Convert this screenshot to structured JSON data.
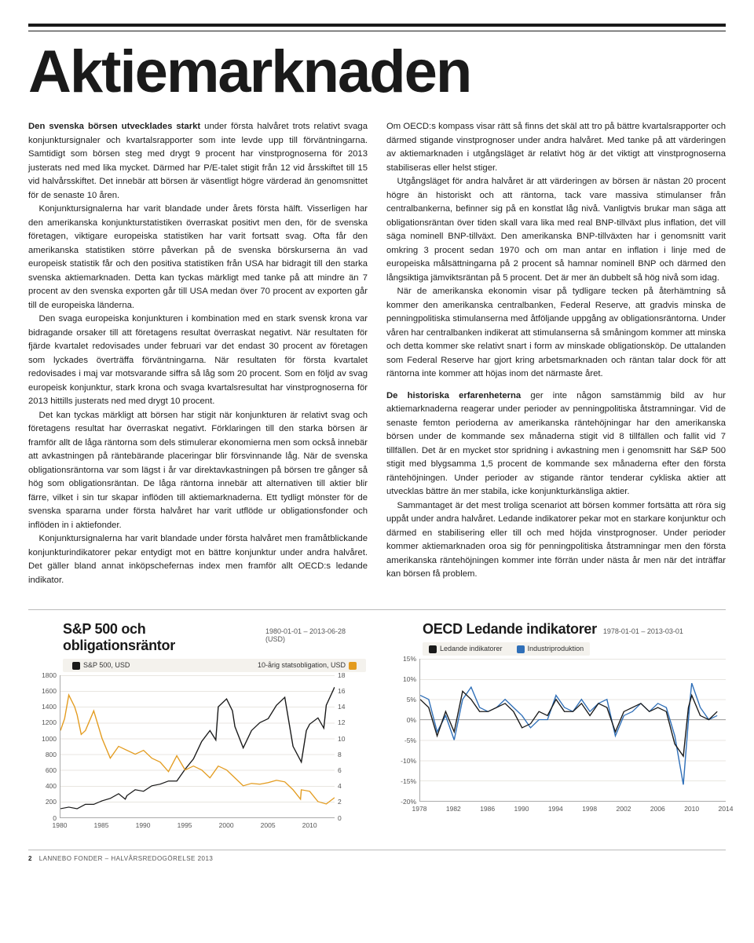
{
  "title": "Aktiemarknaden",
  "left_column": {
    "p1_lead": "Den svenska börsen utvecklades starkt",
    "p1": " under första halvåret trots relativt svaga konjunktursignaler och kvartalsrapporter som inte levde upp till förväntningarna. Samtidigt som börsen steg med drygt 9 procent har vinstprognoserna för 2013 justerats ned med lika mycket. Därmed har P/E-talet stigit från 12 vid årsskiftet till 15 vid halvårsskiftet. Det innebär att börsen är väsentligt högre värderad än genomsnittet för de senaste 10 åren.",
    "p2": "Konjunktursignalerna har varit blandade under årets första hälft. Visserligen har den amerikanska konjunkturstatistiken överraskat positivt men den, för de svenska företagen, viktigare europeiska statistiken har varit fortsatt svag. Ofta får den amerikanska statistiken större påverkan på de svenska börskurserna än vad europeisk statistik får och den positiva statistiken från USA har bidragit till den starka svenska aktiemarknaden. Detta kan tyckas märkligt med tanke på att mindre än 7 procent av den svenska exporten går till USA medan över 70 procent av exporten går till de europeiska länderna.",
    "p3": "Den svaga europeiska konjunkturen i kombination med en stark svensk krona var bidragande orsaker till att företagens resultat överraskat negativt. När resultaten för fjärde kvartalet redovisades under februari var det endast 30 procent av företagen som lyckades överträffa förväntningarna. När resultaten för första kvartalet redovisades i maj var motsvarande siffra så låg som 20 procent. Som en följd av svag europeisk konjunktur, stark krona och svaga kvartalsresultat har vinstprognoserna för 2013 hittills justerats ned med drygt 10 procent.",
    "p4": "Det kan tyckas märkligt att börsen har stigit när konjunkturen är relativt svag och företagens resultat har överraskat negativt. Förklaringen till den starka börsen är framför allt de låga räntorna som dels stimulerar ekonomierna men som också innebär att avkastningen på räntebärande placeringar blir försvinnande låg. När de svenska obligationsräntorna var som lägst i år var direktavkastningen på börsen tre gånger så hög som obligationsräntan. De låga räntorna innebär att alternativen till aktier blir färre, vilket i sin tur skapar inflöden till aktiemarknaderna. Ett tydligt mönster för de svenska spararna under första halvåret har varit utflöde ur obligationsfonder och inflöden in i aktiefonder.",
    "p5": "Konjunktursignalerna har varit blandade under första halvåret men framåtblickande konjunkturindikatorer pekar entydigt mot en bättre konjunktur under andra halvåret. Det gäller bland annat inköpschefernas index men framför allt OECD:s ledande indikator."
  },
  "right_column": {
    "p1": "Om OECD:s kompass visar rätt så finns det skäl att tro på bättre kvartalsrapporter och därmed stigande vinstprognoser under andra halvåret. Med tanke på att värderingen av aktiemarknaden i utgångsläget är relativt hög är det viktigt att vinstprognoserna stabiliseras eller helst stiger.",
    "p2": "Utgångsläget för andra halvåret är att värderingen av börsen är nästan 20 procent högre än historiskt och att räntorna, tack vare massiva stimulanser från centralbankerna, befinner sig på en konstlat låg nivå. Vanligtvis brukar man säga att obligationsräntan över tiden skall vara lika med real BNP-tillväxt plus inflation, det vill säga nominell BNP-tillväxt. Den amerikanska BNP-tillväxten har i genomsnitt varit omkring 3 procent sedan 1970 och om man antar en inflation i linje med de europeiska målsättningarna på 2 procent så hamnar nominell BNP och därmed den långsiktiga jämviktsräntan på 5 procent. Det är mer än dubbelt så hög nivå som idag.",
    "p3": "När de amerikanska ekonomin visar på tydligare tecken på återhämtning så kommer den amerikanska centralbanken, Federal Reserve, att gradvis minska de penningpolitiska stimulanserna med åtföljande uppgång av obligationsräntorna. Under våren har centralbanken indikerat att stimulanserna så småningom kommer att minska och detta kommer ske relativt snart i form av minskade obligationsköp. De uttalanden som Federal Reserve har gjort kring arbetsmarknaden och räntan talar dock för att räntorna inte kommer att höjas inom det närmaste året.",
    "p4_lead": "De historiska erfarenheterna",
    "p4": " ger inte någon samstämmig bild av hur aktiemarknaderna reagerar under perioder av penningpolitiska åtstramningar. Vid de senaste femton perioderna av amerikanska räntehöjningar har den amerikanska börsen under de kommande sex månaderna stigit vid 8 tillfällen och fallit vid 7 tillfällen. Det är en mycket stor spridning i avkastning men i genomsnitt har S&P 500 stigit med blygsamma 1,5 procent de kommande sex månaderna efter den första räntehöjningen. Under perioder av stigande räntor tenderar cykliska aktier att utvecklas bättre än mer stabila, icke konjunkturkänsliga aktier.",
    "p5": "Sammantaget är det mest troliga scenariot att börsen kommer fortsätta att röra sig uppåt under andra halvåret. Ledande indikatorer pekar mot en starkare konjunktur och därmed en stabilisering eller till och med höjda vinstprognoser. Under perioder kommer aktiemarknaden oroa sig för penningpolitiska åtstramningar men den första amerikanska räntehöjningen kommer inte förrän under nästa år men när det inträffar kan börsen få problem."
  },
  "chart1": {
    "title": "S&P 500 och obligationsräntor",
    "subtitle": "1980-01-01 – 2013-06-28 (USD)",
    "legend_left": "S&P 500, USD",
    "legend_right": "10-årig statsobligation, USD",
    "legend_color_left": "#1a1a1a",
    "legend_color_right": "#e39b1e",
    "y_left": {
      "min": 0,
      "max": 1800,
      "step": 200,
      "ticks": [
        0,
        200,
        400,
        600,
        800,
        1000,
        1200,
        1400,
        1600,
        1800
      ]
    },
    "y_right": {
      "min": 0,
      "max": 18,
      "step": 2,
      "ticks": [
        0,
        2,
        4,
        6,
        8,
        10,
        12,
        14,
        16,
        18
      ]
    },
    "x": {
      "min": 1980,
      "max": 2013,
      "ticks": [
        1980,
        1985,
        1990,
        1995,
        2000,
        2005,
        2010
      ]
    },
    "series_sp500": {
      "color": "#1a1a1a",
      "width": 1.2,
      "points": [
        [
          1980,
          110
        ],
        [
          1981,
          130
        ],
        [
          1982,
          110
        ],
        [
          1983,
          165
        ],
        [
          1984,
          165
        ],
        [
          1985,
          210
        ],
        [
          1986,
          240
        ],
        [
          1987,
          300
        ],
        [
          1987.8,
          230
        ],
        [
          1988,
          275
        ],
        [
          1989,
          350
        ],
        [
          1990,
          330
        ],
        [
          1991,
          400
        ],
        [
          1992,
          420
        ],
        [
          1993,
          460
        ],
        [
          1994,
          460
        ],
        [
          1995,
          610
        ],
        [
          1996,
          740
        ],
        [
          1997,
          960
        ],
        [
          1998,
          1100
        ],
        [
          1998.7,
          980
        ],
        [
          1999,
          1400
        ],
        [
          2000,
          1500
        ],
        [
          2000.7,
          1350
        ],
        [
          2001,
          1150
        ],
        [
          2002,
          880
        ],
        [
          2003,
          1100
        ],
        [
          2004,
          1200
        ],
        [
          2005,
          1250
        ],
        [
          2006,
          1420
        ],
        [
          2007,
          1520
        ],
        [
          2008,
          900
        ],
        [
          2009,
          700
        ],
        [
          2009.6,
          1100
        ],
        [
          2010,
          1180
        ],
        [
          2011,
          1260
        ],
        [
          2011.7,
          1130
        ],
        [
          2012,
          1420
        ],
        [
          2013,
          1650
        ]
      ]
    },
    "series_bond": {
      "color": "#e39b1e",
      "width": 1.2,
      "points": [
        [
          1980,
          11
        ],
        [
          1980.5,
          12.5
        ],
        [
          1981,
          15.5
        ],
        [
          1981.7,
          14
        ],
        [
          1982,
          13
        ],
        [
          1982.5,
          10.5
        ],
        [
          1983,
          11
        ],
        [
          1984,
          13.5
        ],
        [
          1985,
          10
        ],
        [
          1986,
          7.5
        ],
        [
          1987,
          9
        ],
        [
          1988,
          8.5
        ],
        [
          1989,
          8
        ],
        [
          1990,
          8.5
        ],
        [
          1991,
          7.5
        ],
        [
          1992,
          7
        ],
        [
          1993,
          5.8
        ],
        [
          1994,
          7.8
        ],
        [
          1995,
          6
        ],
        [
          1996,
          6.5
        ],
        [
          1997,
          6
        ],
        [
          1998,
          5
        ],
        [
          1999,
          6.5
        ],
        [
          2000,
          6
        ],
        [
          2001,
          5
        ],
        [
          2002,
          4
        ],
        [
          2003,
          4.3
        ],
        [
          2004,
          4.2
        ],
        [
          2005,
          4.4
        ],
        [
          2006,
          4.7
        ],
        [
          2007,
          4.5
        ],
        [
          2008,
          3.5
        ],
        [
          2008.9,
          2.3
        ],
        [
          2009,
          3.5
        ],
        [
          2010,
          3.3
        ],
        [
          2011,
          2
        ],
        [
          2012,
          1.7
        ],
        [
          2013,
          2.5
        ]
      ]
    }
  },
  "chart2": {
    "title": "OECD Ledande indikatorer",
    "subtitle": "1978-01-01 – 2013-03-01",
    "legend_left": "Ledande indikatorer",
    "legend_right": "Industriproduktion",
    "legend_color_left": "#1a1a1a",
    "legend_color_right": "#2f6fb8",
    "y": {
      "min": -20,
      "max": 15,
      "step": 5,
      "ticks": [
        -20,
        -15,
        -10,
        -5,
        0,
        5,
        10,
        15
      ],
      "suffix": "%"
    },
    "x": {
      "min": 1978,
      "max": 2014,
      "ticks": [
        1978,
        1982,
        1986,
        1990,
        1994,
        1998,
        2002,
        2006,
        2010,
        2014
      ]
    },
    "series_lead": {
      "color": "#1a1a1a",
      "width": 1.2,
      "points": [
        [
          1978,
          5
        ],
        [
          1979,
          3
        ],
        [
          1980,
          -4
        ],
        [
          1981,
          2
        ],
        [
          1982,
          -3
        ],
        [
          1983,
          7
        ],
        [
          1984,
          5
        ],
        [
          1985,
          2
        ],
        [
          1986,
          2
        ],
        [
          1987,
          3
        ],
        [
          1988,
          4
        ],
        [
          1989,
          2
        ],
        [
          1990,
          -2
        ],
        [
          1991,
          -1
        ],
        [
          1992,
          2
        ],
        [
          1993,
          1
        ],
        [
          1994,
          5
        ],
        [
          1995,
          2
        ],
        [
          1996,
          2
        ],
        [
          1997,
          4
        ],
        [
          1998,
          1
        ],
        [
          1999,
          4
        ],
        [
          2000,
          3
        ],
        [
          2001,
          -3
        ],
        [
          2002,
          2
        ],
        [
          2003,
          3
        ],
        [
          2004,
          4
        ],
        [
          2005,
          2
        ],
        [
          2006,
          3
        ],
        [
          2007,
          2
        ],
        [
          2008,
          -6
        ],
        [
          2009,
          -9
        ],
        [
          2009.6,
          3
        ],
        [
          2010,
          6
        ],
        [
          2011,
          1
        ],
        [
          2012,
          0
        ],
        [
          2013,
          2
        ]
      ]
    },
    "series_ip": {
      "color": "#2f6fb8",
      "width": 1.2,
      "points": [
        [
          1978,
          6
        ],
        [
          1979,
          5
        ],
        [
          1980,
          -3
        ],
        [
          1981,
          1
        ],
        [
          1982,
          -5
        ],
        [
          1983,
          5
        ],
        [
          1984,
          8
        ],
        [
          1985,
          3
        ],
        [
          1986,
          2
        ],
        [
          1987,
          3
        ],
        [
          1988,
          5
        ],
        [
          1989,
          3
        ],
        [
          1990,
          1
        ],
        [
          1991,
          -2
        ],
        [
          1992,
          0
        ],
        [
          1993,
          0
        ],
        [
          1994,
          6
        ],
        [
          1995,
          3
        ],
        [
          1996,
          2
        ],
        [
          1997,
          5
        ],
        [
          1998,
          2
        ],
        [
          1999,
          4
        ],
        [
          2000,
          5
        ],
        [
          2001,
          -4
        ],
        [
          2002,
          1
        ],
        [
          2003,
          2
        ],
        [
          2004,
          4
        ],
        [
          2005,
          2
        ],
        [
          2006,
          4
        ],
        [
          2007,
          3
        ],
        [
          2008,
          -4
        ],
        [
          2009,
          -16
        ],
        [
          2009.8,
          5
        ],
        [
          2010,
          9
        ],
        [
          2011,
          3
        ],
        [
          2012,
          0
        ],
        [
          2013,
          1
        ]
      ]
    }
  },
  "footer": {
    "page": "2",
    "text": "LANNEBO FONDER – HALVÅRSREDOGÖRELSE 2013"
  }
}
